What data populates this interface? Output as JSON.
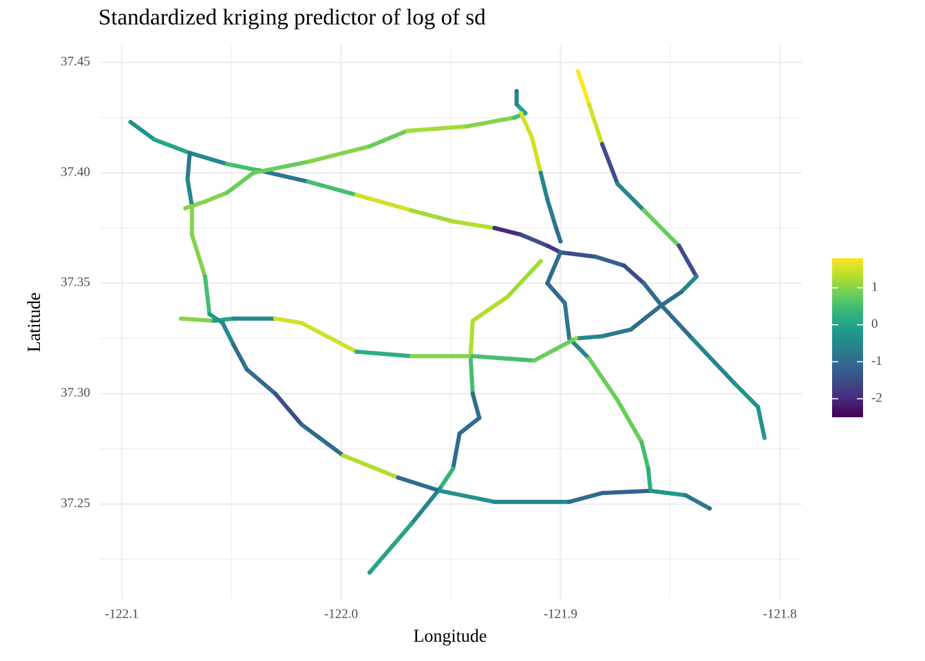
{
  "chart_data": {
    "type": "network",
    "title": "Standardized kriging predictor of log of sd",
    "x_label": "Longitude",
    "y_label": "Latitude",
    "xlim": [
      -122.11,
      -121.79
    ],
    "ylim": [
      37.207,
      37.458
    ],
    "xticks": [
      {
        "value": -122.1,
        "label": "-122.1"
      },
      {
        "value": -122.0,
        "label": "-122.0"
      },
      {
        "value": -121.9,
        "label": "-121.9"
      },
      {
        "value": -121.8,
        "label": "-121.8"
      }
    ],
    "yticks": [
      37.25,
      {
        "value": 37.3,
        "label": "37.30"
      },
      37.35,
      {
        "value": 37.4,
        "label": "37.40"
      },
      37.45
    ],
    "grid": true,
    "clim": [
      -2.5,
      1.8
    ],
    "colorbar_ticks": [
      -2,
      -1,
      0,
      1
    ],
    "colorscale": [
      "#440154",
      "#482878",
      "#3e4a89",
      "#31688e",
      "#26828e",
      "#1f9e89",
      "#35b779",
      "#6ece58",
      "#b5de2b",
      "#fde725"
    ],
    "series": [
      {
        "x": [
          -122.096,
          -122.085,
          -122.069,
          -122.052,
          -122.037,
          -122.015,
          -121.993,
          -121.968,
          -121.949,
          -121.93,
          -121.918,
          -121.906,
          -121.9
        ],
        "y": [
          37.423,
          37.415,
          37.409,
          37.404,
          37.401,
          37.396,
          37.39,
          37.383,
          37.378,
          37.375,
          37.372,
          37.367,
          37.364
        ],
        "values": [
          -0.3,
          0,
          -0.5,
          0.5,
          -0.8,
          0.5,
          1.5,
          1.2,
          1.3,
          -2,
          -1.5,
          -1.8,
          -1
        ]
      },
      {
        "x": [
          -122.071,
          -122.062,
          -122.052,
          -122.04,
          -122.015,
          -121.987,
          -121.97,
          -121.943,
          -121.921,
          -121.916,
          -121.92,
          -121.92
        ],
        "y": [
          37.384,
          37.387,
          37.391,
          37.4,
          37.405,
          37.412,
          37.419,
          37.421,
          37.425,
          37.427,
          37.431,
          37.437
        ],
        "values": [
          1,
          1,
          0.8,
          0.8,
          1,
          0.8,
          1.2,
          1,
          0.5,
          0,
          -0.5,
          -0.8
        ]
      },
      {
        "x": [
          -121.918,
          -121.913,
          -121.909,
          -121.906,
          -121.902,
          -121.9
        ],
        "y": [
          37.427,
          37.416,
          37.4,
          37.388,
          37.375,
          37.369
        ],
        "values": [
          1.5,
          1.5,
          -0.5,
          -0.8,
          -1,
          -1
        ]
      },
      {
        "x": [
          -121.892,
          -121.887,
          -121.881,
          -121.874,
          -121.862,
          -121.846,
          -121.838,
          -121.845,
          -121.854,
          -121.84,
          -121.821,
          -121.81,
          -121.807
        ],
        "y": [
          37.446,
          37.431,
          37.413,
          37.395,
          37.383,
          37.367,
          37.353,
          37.346,
          37.34,
          37.325,
          37.305,
          37.294,
          37.28
        ],
        "values": [
          1.8,
          1.5,
          -1.5,
          -0.5,
          0.8,
          -1.5,
          -0.5,
          -1,
          -1,
          -0.5,
          -0.3,
          -0.3,
          0
        ]
      },
      {
        "x": [
          -121.9,
          -121.884,
          -121.871,
          -121.862,
          -121.854,
          -121.868,
          -121.881,
          -121.893
        ],
        "y": [
          37.364,
          37.362,
          37.358,
          37.35,
          37.34,
          37.329,
          37.326,
          37.325
        ],
        "values": [
          -1.5,
          -1.2,
          -1.5,
          -1,
          -1,
          -0.8,
          -0.5,
          0.5
        ]
      },
      {
        "x": [
          -121.909,
          -121.924,
          -121.94,
          -121.941,
          -121.94,
          -121.937,
          -121.946,
          -121.949,
          -121.955,
          -121.968,
          -121.987
        ],
        "y": [
          37.36,
          37.344,
          37.333,
          37.317,
          37.3,
          37.289,
          37.282,
          37.266,
          37.257,
          37.241,
          37.219
        ],
        "values": [
          1.2,
          1.3,
          1.3,
          0.5,
          -1,
          -1,
          -1,
          0.3,
          -0.5,
          0,
          -0.2
        ]
      },
      {
        "x": [
          -121.9,
          -121.906,
          -121.898,
          -121.896,
          -121.887,
          -121.874,
          -121.863,
          -121.86,
          -121.859
        ],
        "y": [
          37.364,
          37.35,
          37.341,
          37.325,
          37.316,
          37.297,
          37.278,
          37.266,
          37.256
        ],
        "values": [
          -1,
          -1,
          -0.8,
          -0.5,
          0.8,
          0.8,
          0.5,
          0.2,
          -0.5
        ]
      },
      {
        "x": [
          -122.073,
          -122.058,
          -122.049,
          -122.03,
          -122.018,
          -121.993,
          -121.968,
          -121.94,
          -121.912,
          -121.893
        ],
        "y": [
          37.334,
          37.333,
          37.334,
          37.334,
          37.332,
          37.319,
          37.317,
          37.317,
          37.315,
          37.325
        ],
        "values": [
          1,
          0,
          -0.5,
          1.5,
          1.5,
          0.2,
          1,
          0.5,
          0.8,
          1.2
        ]
      },
      {
        "x": [
          -122.069,
          -122.07,
          -122.068,
          -122.068,
          -122.062,
          -122.06,
          -122.054
        ],
        "y": [
          37.409,
          37.397,
          37.385,
          37.372,
          37.353,
          37.336,
          37.332
        ],
        "values": [
          -0.8,
          -0.5,
          1,
          1,
          0.5,
          -0.2,
          -0.5
        ]
      },
      {
        "x": [
          -122.054,
          -122.049,
          -122.043,
          -122.03,
          -122.018,
          -121.999,
          -121.974,
          -121.955,
          -121.93,
          -121.896,
          -121.881,
          -121.859,
          -121.843,
          -121.832
        ],
        "y": [
          37.332,
          37.322,
          37.311,
          37.3,
          37.286,
          37.272,
          37.262,
          37.256,
          37.251,
          37.251,
          37.255,
          37.256,
          37.254,
          37.248
        ],
        "values": [
          -0.5,
          -1,
          -1,
          -1.5,
          -1,
          1.3,
          -1,
          -0.3,
          -0.5,
          -1,
          -1.2,
          -0.2,
          -0.8,
          -1
        ]
      }
    ]
  }
}
